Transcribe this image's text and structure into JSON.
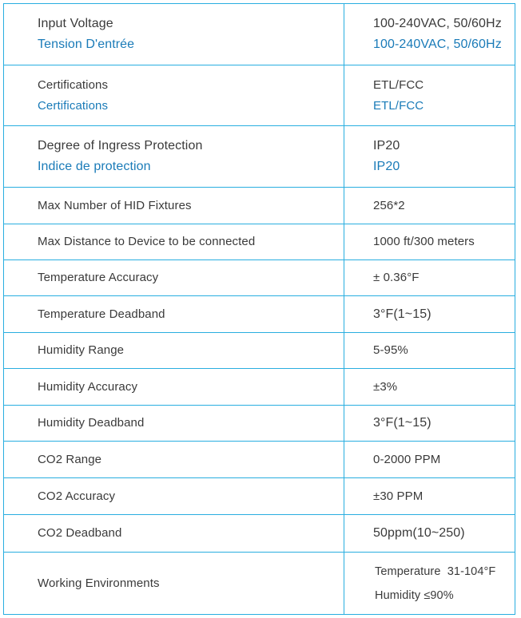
{
  "rows": [
    {
      "label": "Input Voltage",
      "label_fr": "Tension D'entrée",
      "value": "100-240VAC, 50/60Hz",
      "value_fr": "100-240VAC, 50/60Hz"
    },
    {
      "label": "Certifications",
      "label_fr": "Certifications",
      "value": "ETL/FCC",
      "value_fr": "ETL/FCC"
    },
    {
      "label": "Degree of Ingress Protection",
      "label_fr": "Indice de protection",
      "value": "IP20",
      "value_fr": "IP20"
    },
    {
      "label": "Max Number of HID Fixtures",
      "value": "256*2"
    },
    {
      "label": "Max Distance to Device to be connected",
      "value": "1000 ft/300 meters"
    },
    {
      "label": "Temperature Accuracy",
      "value": "± 0.36°F"
    },
    {
      "label": "Temperature Deadband",
      "value": "3°F(1~15)"
    },
    {
      "label": "Humidity Range",
      "value": "5-95%"
    },
    {
      "label": "Humidity Accuracy",
      "value": "±3%"
    },
    {
      "label": "Humidity Deadband",
      "value": "3°F(1~15)"
    },
    {
      "label": "CO2 Range",
      "value": "0-2000 PPM"
    },
    {
      "label": "CO2 Accuracy",
      "value": "±30 PPM"
    },
    {
      "label": "CO2 Deadband",
      "value": "50ppm(10~250)"
    },
    {
      "label": "Working Environments",
      "value": "Temperature  31-104°F",
      "value_2": "Humidity ≤90%"
    }
  ],
  "colors": {
    "border": "#29aee0",
    "text": "#3a3a3a",
    "french_text": "#1a7bb8"
  }
}
